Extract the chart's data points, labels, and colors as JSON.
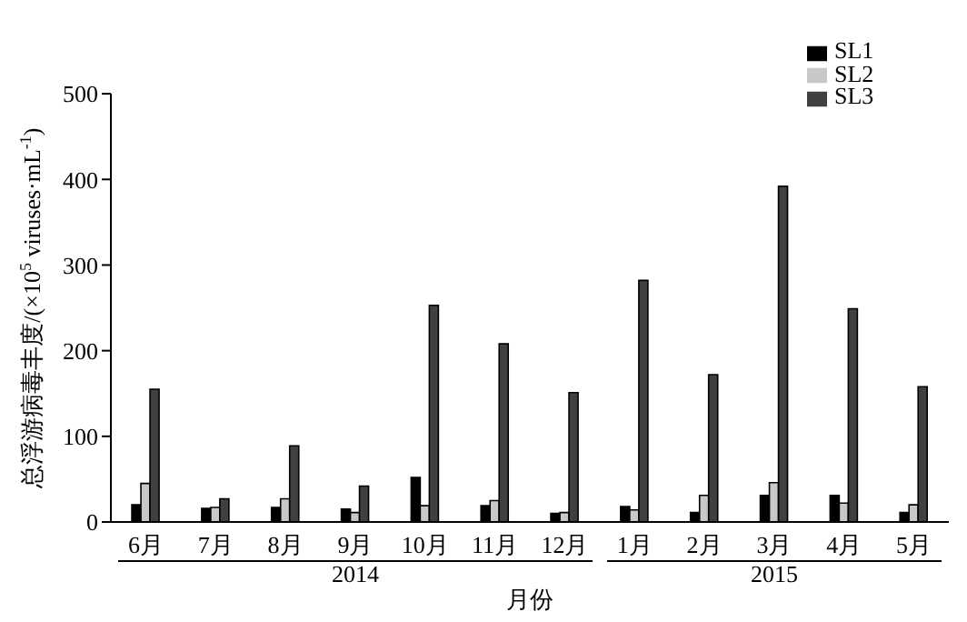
{
  "chart_data": {
    "type": "bar",
    "xlabel": "月份",
    "ylabel": "总浮游病毒丰度/(×10$^{5}$ viruses·mL$^{-1}$)",
    "categories": [
      "6月",
      "7月",
      "8月",
      "9月",
      "10月",
      "11月",
      "12月",
      "1月",
      "2月",
      "3月",
      "4月",
      "5月"
    ],
    "series": [
      {
        "name": "SL1",
        "color": "#000000",
        "values": [
          20,
          16,
          17,
          15,
          52,
          19,
          10,
          18,
          11,
          31,
          31,
          11
        ]
      },
      {
        "name": "SL2",
        "color": "#c8c8c8",
        "values": [
          45,
          17,
          27,
          11,
          19,
          25,
          11,
          14,
          31,
          46,
          22,
          20
        ]
      },
      {
        "name": "SL3",
        "color": "#404040",
        "values": [
          155,
          27,
          89,
          42,
          253,
          208,
          151,
          282,
          172,
          392,
          249,
          158
        ]
      }
    ],
    "ylim": [
      0,
      500
    ],
    "yticks": [
      0,
      100,
      200,
      300,
      400,
      500
    ],
    "grid": false,
    "legend": "top right",
    "annotations": [
      "2014",
      "2015"
    ]
  }
}
